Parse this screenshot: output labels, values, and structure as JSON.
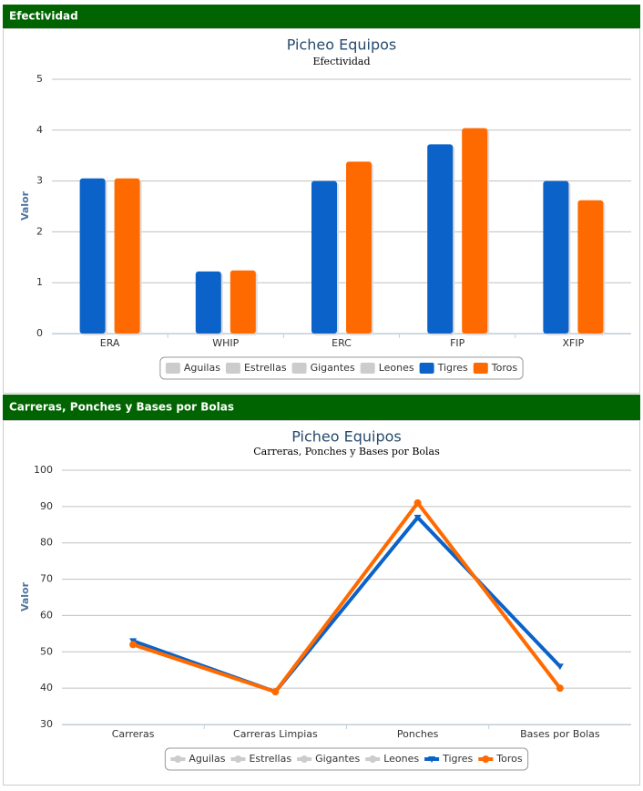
{
  "sections": [
    "Efectividad",
    "Carreras, Ponches y Bases por Bolas"
  ],
  "chart_data": [
    {
      "type": "bar",
      "title": "Picheo Equipos",
      "subtitle": "Efectividad",
      "y_label": "Valor",
      "categories": [
        "ERA",
        "WHIP",
        "ERC",
        "FIP",
        "XFIP"
      ],
      "series": [
        {
          "name": "Aguilas",
          "color": "#cccccc",
          "hidden": true,
          "values": [
            null,
            null,
            null,
            null,
            null
          ]
        },
        {
          "name": "Estrellas",
          "color": "#cccccc",
          "hidden": true,
          "values": [
            null,
            null,
            null,
            null,
            null
          ]
        },
        {
          "name": "Gigantes",
          "color": "#cccccc",
          "hidden": true,
          "values": [
            null,
            null,
            null,
            null,
            null
          ]
        },
        {
          "name": "Leones",
          "color": "#cccccc",
          "hidden": true,
          "values": [
            null,
            null,
            null,
            null,
            null
          ]
        },
        {
          "name": "Tigres",
          "color": "#0b62c8",
          "hidden": false,
          "values": [
            3.05,
            1.22,
            3.0,
            3.72,
            3.0
          ]
        },
        {
          "name": "Toros",
          "color": "#ff6a00",
          "hidden": false,
          "values": [
            3.05,
            1.24,
            3.38,
            4.04,
            2.62
          ]
        }
      ],
      "ylim": [
        0,
        5
      ],
      "yticks": [
        0,
        1,
        2,
        3,
        4,
        5
      ],
      "grid": true
    },
    {
      "type": "line",
      "title": "Picheo Equipos",
      "subtitle": "Carreras, Ponches y Bases por Bolas",
      "y_label": "Valor",
      "categories": [
        "Carreras",
        "Carreras Limpias",
        "Ponches",
        "Bases por Bolas"
      ],
      "series": [
        {
          "name": "Aguilas",
          "color": "#cccccc",
          "hidden": true,
          "marker": "circle",
          "values": [
            null,
            null,
            null,
            null
          ]
        },
        {
          "name": "Estrellas",
          "color": "#cccccc",
          "hidden": true,
          "marker": "circle",
          "values": [
            null,
            null,
            null,
            null
          ]
        },
        {
          "name": "Gigantes",
          "color": "#cccccc",
          "hidden": true,
          "marker": "circle",
          "values": [
            null,
            null,
            null,
            null
          ]
        },
        {
          "name": "Leones",
          "color": "#cccccc",
          "hidden": true,
          "marker": "circle",
          "values": [
            null,
            null,
            null,
            null
          ]
        },
        {
          "name": "Tigres",
          "color": "#0b62c8",
          "hidden": false,
          "marker": "triangle",
          "values": [
            53,
            39,
            87,
            46
          ]
        },
        {
          "name": "Toros",
          "color": "#ff6a00",
          "hidden": false,
          "marker": "circle",
          "values": [
            52,
            39,
            91,
            40
          ]
        }
      ],
      "ylim": [
        30,
        100
      ],
      "yticks": [
        30,
        40,
        50,
        60,
        70,
        80,
        90,
        100
      ],
      "grid": true
    }
  ]
}
